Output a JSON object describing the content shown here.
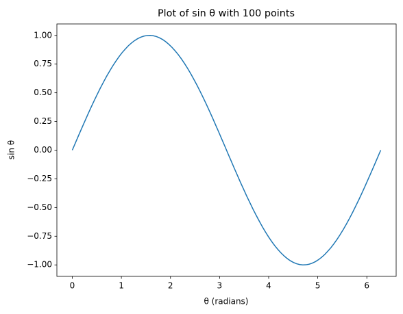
{
  "chart_data": {
    "type": "line",
    "title": "Plot of sin θ with 100 points",
    "x_label": "θ (radians)",
    "y_label": "sin θ",
    "x": [
      0,
      0.063,
      0.127,
      0.19,
      0.254,
      0.317,
      0.381,
      0.444,
      0.508,
      0.571,
      0.635,
      0.698,
      0.762,
      0.825,
      0.889,
      0.952,
      1.015,
      1.079,
      1.142,
      1.206,
      1.269,
      1.333,
      1.396,
      1.46,
      1.523,
      1.587,
      1.65,
      1.714,
      1.777,
      1.841,
      1.904,
      1.967,
      2.031,
      2.094,
      2.158,
      2.221,
      2.285,
      2.348,
      2.412,
      2.475,
      2.539,
      2.602,
      2.666,
      2.729,
      2.793,
      2.856,
      2.919,
      2.983,
      3.046,
      3.11,
      3.173,
      3.237,
      3.3,
      3.364,
      3.427,
      3.491,
      3.554,
      3.618,
      3.681,
      3.745,
      3.808,
      3.871,
      3.935,
      3.998,
      4.062,
      4.125,
      4.189,
      4.252,
      4.316,
      4.379,
      4.443,
      4.506,
      4.57,
      4.633,
      4.697,
      4.76,
      4.823,
      4.887,
      4.95,
      5.014,
      5.077,
      5.141,
      5.204,
      5.268,
      5.331,
      5.395,
      5.458,
      5.522,
      5.585,
      5.649,
      5.712,
      5.775,
      5.839,
      5.902,
      5.966,
      6.029,
      6.093,
      6.156,
      6.22,
      6.283
    ],
    "series": [
      {
        "color": "#1f77b4",
        "values": [
          0,
          0.063,
          0.127,
          0.189,
          0.251,
          0.312,
          0.372,
          0.43,
          0.486,
          0.541,
          0.593,
          0.643,
          0.69,
          0.735,
          0.776,
          0.815,
          0.85,
          0.881,
          0.91,
          0.934,
          0.955,
          0.972,
          0.985,
          0.994,
          0.999,
          1.0,
          0.997,
          0.99,
          0.979,
          0.964,
          0.945,
          0.922,
          0.896,
          0.866,
          0.833,
          0.796,
          0.756,
          0.713,
          0.667,
          0.618,
          0.567,
          0.514,
          0.458,
          0.401,
          0.342,
          0.282,
          0.22,
          0.158,
          0.095,
          0.032,
          -0.032,
          -0.095,
          -0.158,
          -0.22,
          -0.282,
          -0.342,
          -0.401,
          -0.458,
          -0.514,
          -0.567,
          -0.618,
          -0.667,
          -0.713,
          -0.756,
          -0.796,
          -0.833,
          -0.866,
          -0.896,
          -0.922,
          -0.945,
          -0.964,
          -0.979,
          -0.99,
          -0.997,
          -1.0,
          -0.999,
          -0.994,
          -0.985,
          -0.972,
          -0.955,
          -0.934,
          -0.91,
          -0.881,
          -0.85,
          -0.815,
          -0.776,
          -0.735,
          -0.69,
          -0.643,
          -0.593,
          -0.541,
          -0.486,
          -0.43,
          -0.372,
          -0.312,
          -0.251,
          -0.189,
          -0.127,
          -0.063,
          0
        ]
      }
    ],
    "xlim": [
      -0.314,
      6.597
    ],
    "ylim": [
      -1.1,
      1.1
    ],
    "xticks": [
      0,
      1,
      2,
      3,
      4,
      5,
      6
    ],
    "yticks": [
      {
        "value": -1,
        "label": "−1.00"
      },
      {
        "value": -0.75,
        "label": "−0.75"
      },
      {
        "value": -0.5,
        "label": "−0.50"
      },
      {
        "value": -0.25,
        "label": "−0.25"
      },
      {
        "value": 0,
        "label": "0.00"
      },
      {
        "value": 0.25,
        "label": "0.25"
      },
      {
        "value": 0.5,
        "label": "0.50"
      },
      {
        "value": 0.75,
        "label": "0.75"
      },
      {
        "value": 1,
        "label": "1.00"
      }
    ],
    "grid": false
  }
}
